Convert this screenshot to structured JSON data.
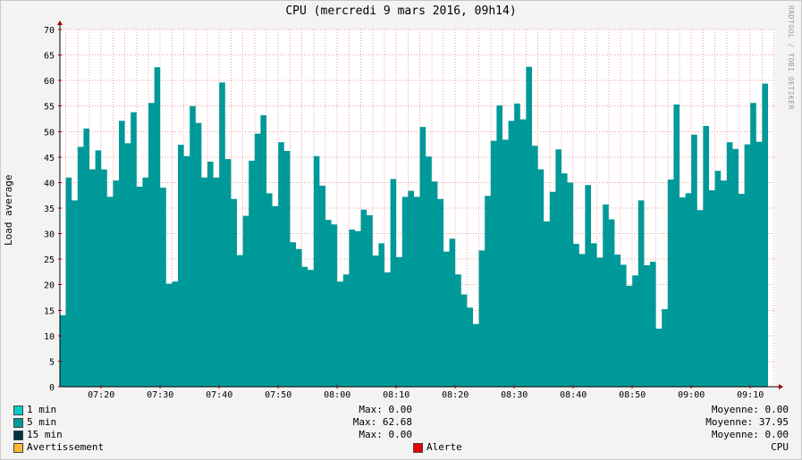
{
  "title": "CPU (mercredi  9 mars 2016, 09h14)",
  "side_credit": "RRDTOOL / TOBI OETIKER",
  "colors": {
    "area": "#009999",
    "swatch_1min": "#00cccc",
    "swatch_5min": "#009999",
    "swatch_15min": "#003344",
    "warning": "#ffb833",
    "alert": "#ee0000",
    "grid": "#f0a0a0",
    "background": "#ffffff"
  },
  "legend": {
    "one_min": {
      "label": "1 min",
      "max": "Max: 0.00",
      "avg": "Moyenne: 0.00"
    },
    "five_min": {
      "label": "5 min",
      "max": "Max: 62.68",
      "avg": "Moyenne: 37.95"
    },
    "fifteen_min": {
      "label": "15 min",
      "max": "Max: 0.00",
      "avg": "Moyenne: 0.00"
    },
    "warning": {
      "label": "Avertissement"
    },
    "alert": {
      "label": "Alerte"
    },
    "footer_right": "CPU"
  },
  "chart_data": {
    "type": "area",
    "title": "CPU (mercredi  9 mars 2016, 09h14)",
    "xlabel": "",
    "ylabel": "Load average",
    "ylim": [
      0,
      70
    ],
    "yticks": [
      0,
      5,
      10,
      15,
      20,
      25,
      30,
      35,
      40,
      45,
      50,
      55,
      60,
      65,
      70
    ],
    "xlim_minutes": [
      13,
      134
    ],
    "xticks": [
      {
        "label": "07:20",
        "minute": 20
      },
      {
        "label": "07:30",
        "minute": 30
      },
      {
        "label": "07:40",
        "minute": 40
      },
      {
        "label": "07:50",
        "minute": 50
      },
      {
        "label": "08:00",
        "minute": 60
      },
      {
        "label": "08:10",
        "minute": 70
      },
      {
        "label": "08:20",
        "minute": 80
      },
      {
        "label": "08:30",
        "minute": 90
      },
      {
        "label": "08:40",
        "minute": 100
      },
      {
        "label": "08:50",
        "minute": 110
      },
      {
        "label": "09:00",
        "minute": 120
      },
      {
        "label": "09:10",
        "minute": 130
      }
    ],
    "grid": true,
    "series": [
      {
        "name": "5 min",
        "start_minute": 13,
        "step_minutes": 1,
        "values": [
          14.0,
          41.0,
          36.5,
          47.0,
          50.6,
          42.6,
          46.3,
          42.6,
          37.2,
          40.4,
          52.1,
          47.7,
          53.8,
          39.2,
          41.0,
          55.6,
          62.6,
          39.0,
          20.2,
          20.6,
          47.4,
          45.2,
          55.0,
          51.7,
          41.0,
          44.1,
          41.0,
          59.6,
          44.6,
          36.8,
          25.8,
          33.5,
          44.3,
          49.6,
          53.2,
          37.9,
          35.4,
          47.9,
          46.2,
          28.3,
          27.0,
          23.5,
          22.9,
          45.2,
          39.4,
          32.7,
          31.8,
          20.6,
          22.0,
          30.8,
          30.5,
          34.7,
          33.6,
          25.7,
          28.1,
          22.4,
          40.7,
          25.4,
          37.2,
          38.4,
          37.2,
          50.9,
          45.1,
          40.2,
          36.8,
          26.5,
          29.0,
          22.0,
          18.1,
          15.5,
          12.3,
          26.7,
          37.4,
          48.2,
          55.1,
          48.4,
          52.1,
          55.5,
          52.4,
          62.7,
          47.2,
          42.6,
          32.4,
          38.2,
          46.5,
          41.8,
          40.0,
          28.0,
          26.0,
          39.5,
          28.1,
          25.3,
          35.7,
          32.8,
          25.9,
          23.9,
          19.8,
          21.8,
          36.5,
          23.8,
          24.5,
          11.4,
          15.2,
          40.6,
          55.3,
          37.1,
          37.9,
          49.4,
          34.6,
          51.1,
          38.5,
          42.3,
          40.4,
          47.9,
          46.6,
          37.8,
          47.5,
          55.6,
          48.0,
          59.4
        ]
      }
    ]
  }
}
